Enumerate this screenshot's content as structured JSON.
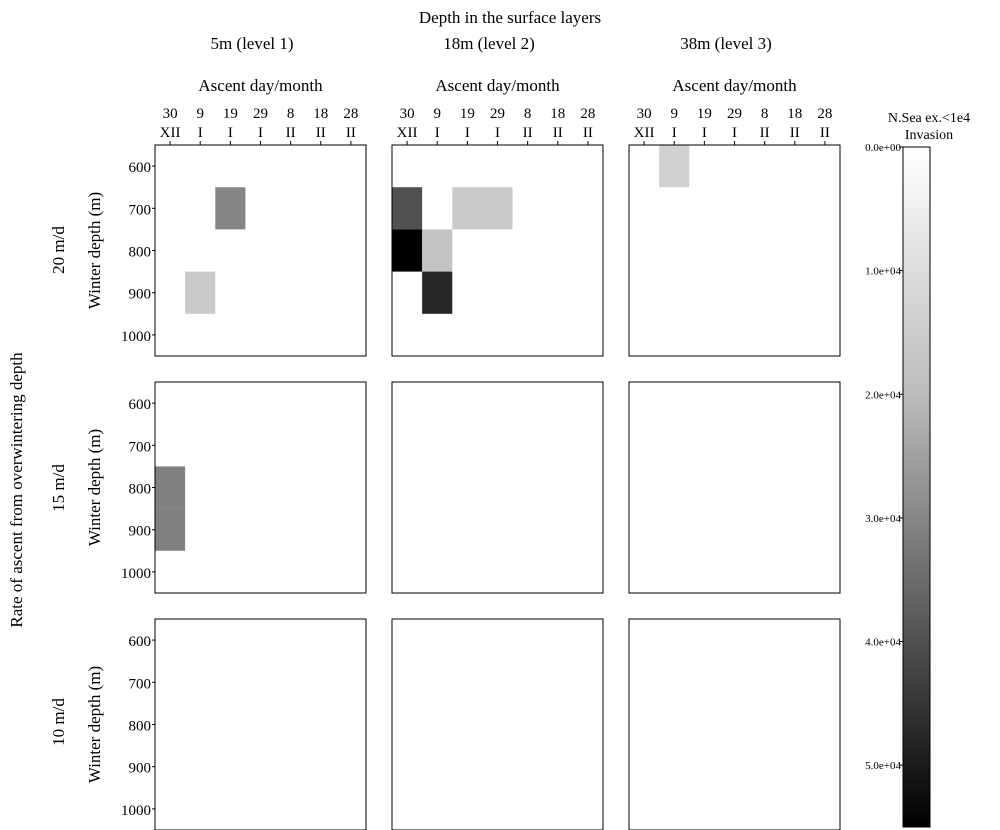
{
  "chart_data": {
    "type": "heatmap",
    "title": "Depth in the surface layers",
    "row_axis_label": "Rate of ascent from overwintering depth",
    "column_labels": [
      "5m (level 1)",
      "18m (level 2)",
      "38m (level 3)"
    ],
    "row_labels": [
      "20 m/d",
      "15 m/d",
      "10 m/d"
    ],
    "x_axis_label": "Ascent day/month",
    "x_ticks_day": [
      "30",
      "9",
      "19",
      "29",
      "8",
      "18",
      "28"
    ],
    "x_ticks_month": [
      "XII",
      "I",
      "I",
      "I",
      "II",
      "II",
      "II"
    ],
    "y_axis_label": "Winter depth (m)",
    "y_ticks": [
      600,
      700,
      800,
      900,
      1000
    ],
    "colorbar": {
      "title_line1": "N.Sea ex.<1e4",
      "title_line2": "Invasion",
      "range": [
        0,
        55000
      ],
      "ticks": [
        "0.0e+00",
        "1.0e+04",
        "2.0e+04",
        "3.0e+04",
        "4.0e+04",
        "5.0e+04"
      ],
      "tick_values": [
        0,
        10000,
        20000,
        30000,
        40000,
        50000
      ],
      "colors": [
        "#ffffff",
        "#bdbdbd",
        "#000000"
      ]
    },
    "panels": [
      {
        "row": 0,
        "col": 0,
        "cells": [
          {
            "x": "19 I",
            "y": 700,
            "value": 30000
          },
          {
            "x": "9 I",
            "y": 900,
            "value": 16000
          }
        ]
      },
      {
        "row": 0,
        "col": 1,
        "cells": [
          {
            "x": "30 XII",
            "y": 700,
            "value": 40000
          },
          {
            "x": "19 I",
            "y": 700,
            "value": 16000
          },
          {
            "x": "29 I",
            "y": 700,
            "value": 16000
          },
          {
            "x": "30 XII",
            "y": 800,
            "value": 55000
          },
          {
            "x": "9 I",
            "y": 800,
            "value": 18000
          },
          {
            "x": "9 I",
            "y": 900,
            "value": 48000
          }
        ]
      },
      {
        "row": 0,
        "col": 2,
        "cells": [
          {
            "x": "9 I",
            "y": 600,
            "value": 14000
          }
        ]
      },
      {
        "row": 1,
        "col": 0,
        "cells": [
          {
            "x": "30 XII",
            "y": 800,
            "value": 31000
          },
          {
            "x": "30 XII",
            "y": 900,
            "value": 31000
          }
        ]
      },
      {
        "row": 1,
        "col": 1,
        "cells": []
      },
      {
        "row": 1,
        "col": 2,
        "cells": []
      },
      {
        "row": 2,
        "col": 0,
        "cells": []
      },
      {
        "row": 2,
        "col": 1,
        "cells": []
      },
      {
        "row": 2,
        "col": 2,
        "cells": []
      }
    ]
  }
}
